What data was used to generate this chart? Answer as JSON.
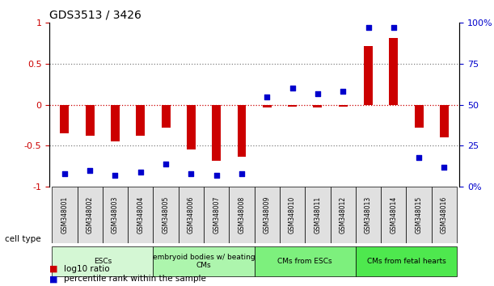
{
  "title": "GDS3513 / 3426",
  "samples": [
    "GSM348001",
    "GSM348002",
    "GSM348003",
    "GSM348004",
    "GSM348005",
    "GSM348006",
    "GSM348007",
    "GSM348008",
    "GSM348009",
    "GSM348010",
    "GSM348011",
    "GSM348012",
    "GSM348013",
    "GSM348014",
    "GSM348015",
    "GSM348016"
  ],
  "log10_ratio": [
    -0.35,
    -0.38,
    -0.45,
    -0.38,
    -0.28,
    -0.55,
    -0.68,
    -0.63,
    -0.03,
    -0.02,
    -0.03,
    -0.02,
    0.72,
    0.82,
    -0.28,
    -0.4
  ],
  "percentile_rank": [
    8,
    10,
    7,
    9,
    14,
    8,
    7,
    8,
    55,
    60,
    57,
    58,
    97,
    97,
    18,
    12
  ],
  "cell_type_groups": [
    {
      "label": "ESCs",
      "start": 0,
      "end": 4,
      "color": "#ccffcc"
    },
    {
      "label": "embryoid bodies w/ beating\nCMs",
      "start": 4,
      "end": 8,
      "color": "#99ff99"
    },
    {
      "label": "CMs from ESCs",
      "start": 8,
      "end": 12,
      "color": "#66ff66"
    },
    {
      "label": "CMs from fetal hearts",
      "start": 12,
      "end": 16,
      "color": "#33ee33"
    }
  ],
  "bar_color_red": "#cc0000",
  "dot_color_blue": "#0000cc",
  "left_axis_color": "#cc0000",
  "right_axis_color": "#0000cc",
  "ylim_left": [
    -1.0,
    1.0
  ],
  "ylim_right": [
    0,
    100
  ],
  "yticks_left": [
    -1.0,
    -0.5,
    0.0,
    0.5,
    1.0
  ],
  "ytick_labels_left": [
    "-1",
    "-0.5",
    "0",
    "0.5",
    "1"
  ],
  "yticks_right": [
    0,
    25,
    50,
    75,
    100
  ],
  "ytick_labels_right": [
    "0%",
    "25",
    "50",
    "75",
    "100%"
  ],
  "dotted_line_y": [
    0.5,
    0.0,
    -0.5
  ],
  "bg_color": "#ffffff",
  "plot_bg": "#ffffff",
  "legend_items": [
    {
      "label": "log10 ratio",
      "color": "#cc0000",
      "marker": "s"
    },
    {
      "label": "percentile rank within the sample",
      "color": "#0000cc",
      "marker": "s"
    }
  ]
}
